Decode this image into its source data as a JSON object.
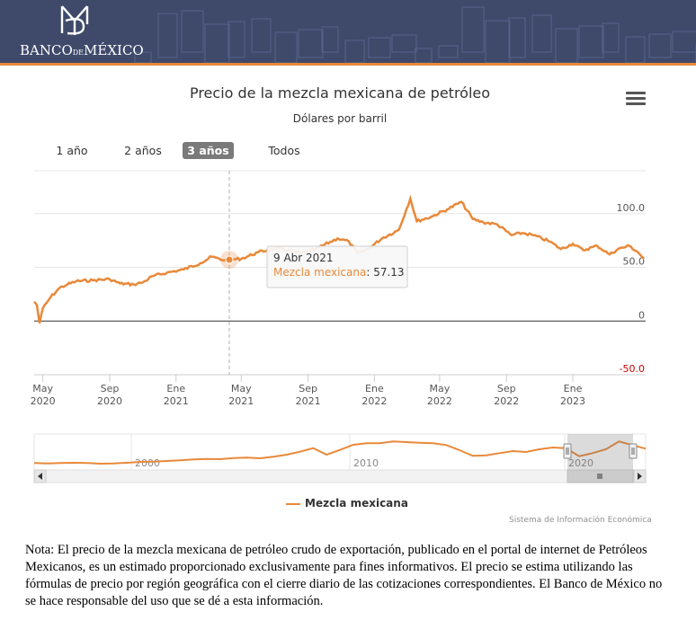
{
  "header": {
    "logo_main": "BANCO",
    "logo_small": "DE",
    "logo_end": "MÉXICO",
    "accent": "#e8893a",
    "background": "#3f4a6b"
  },
  "toolbar": {
    "menu_icon": "hamburger-menu-icon"
  },
  "range_selector": {
    "buttons": [
      {
        "label": "1 año",
        "active": false
      },
      {
        "label": "2 años",
        "active": false
      },
      {
        "label": "3 años",
        "active": true
      },
      {
        "label": "Todos",
        "active": false
      }
    ]
  },
  "tooltip": {
    "date": "9 Abr 2021",
    "series": "Mezcla mexicana",
    "value": "57.13"
  },
  "legend": {
    "label": "Mezcla mexicana"
  },
  "credits": "Sistema de Información Económica",
  "note": "Nota: El precio de la mezcla mexicana de petróleo crudo de exportación, publicado en el portal de internet de Petróleos Mexicanos, es un estimado proporcionado exclusivamente para fines informativos. El precio se estima utilizando las fórmulas de precio por región geográfica con el cierre diario de las cotizaciones correspondientes. El Banco de México no se hace responsable del uso que se dé a esta información.",
  "chart_data": {
    "type": "line",
    "title": "Precio de la mezcla mexicana de petróleo",
    "subtitle": "Dólares por barril",
    "color": "#e8893a",
    "y_ticks": [
      "100.0",
      "50.0",
      "0",
      "-50.0"
    ],
    "y_tick_values": [
      100,
      50,
      0,
      -50
    ],
    "negative_tick_color": "#cc0000",
    "ylim": [
      -50,
      140
    ],
    "x_range": [
      "2020-04-15",
      "2023-05-15"
    ],
    "x_ticks": [
      {
        "date": "2020-05-01",
        "month": "May",
        "year": "2020"
      },
      {
        "date": "2020-09-01",
        "month": "Sep",
        "year": "2020"
      },
      {
        "date": "2021-01-01",
        "month": "Ene",
        "year": "2021"
      },
      {
        "date": "2021-05-01",
        "month": "May",
        "year": "2021"
      },
      {
        "date": "2021-09-01",
        "month": "Sep",
        "year": "2021"
      },
      {
        "date": "2022-01-01",
        "month": "Ene",
        "year": "2022"
      },
      {
        "date": "2022-05-01",
        "month": "May",
        "year": "2022"
      },
      {
        "date": "2022-09-01",
        "month": "Sep",
        "year": "2022"
      },
      {
        "date": "2023-01-01",
        "month": "Ene",
        "year": "2023"
      }
    ],
    "series": [
      {
        "name": "Mezcla mexicana",
        "x": [
          "2020-04-15",
          "2020-04-20",
          "2020-04-25",
          "2020-05-01",
          "2020-05-15",
          "2020-06-01",
          "2020-06-15",
          "2020-07-01",
          "2020-08-01",
          "2020-09-01",
          "2020-09-20",
          "2020-10-15",
          "2020-11-01",
          "2020-11-20",
          "2020-12-15",
          "2021-01-15",
          "2021-02-15",
          "2021-03-08",
          "2021-03-25",
          "2021-04-09",
          "2021-05-01",
          "2021-06-01",
          "2021-07-05",
          "2021-08-20",
          "2021-09-15",
          "2021-10-25",
          "2021-11-15",
          "2021-12-01",
          "2021-12-20",
          "2022-01-15",
          "2022-02-15",
          "2022-03-08",
          "2022-03-20",
          "2022-04-15",
          "2022-05-15",
          "2022-06-10",
          "2022-07-01",
          "2022-07-20",
          "2022-08-15",
          "2022-09-10",
          "2022-09-30",
          "2022-10-20",
          "2022-11-20",
          "2022-12-10",
          "2023-01-01",
          "2023-01-20",
          "2023-02-15",
          "2023-03-10",
          "2023-03-25",
          "2023-04-15",
          "2023-05-01",
          "2023-05-12"
        ],
        "values": [
          18,
          15,
          -2,
          12,
          22,
          31,
          34,
          37,
          38,
          39,
          35,
          34,
          36,
          42,
          45,
          48,
          54,
          60,
          57,
          57.13,
          58,
          64,
          68,
          63,
          67,
          77,
          74,
          63,
          67,
          77,
          85,
          114,
          93,
          97,
          104,
          111,
          95,
          92,
          90,
          80,
          82,
          80,
          74,
          67,
          72,
          66,
          70,
          62,
          67,
          70,
          64,
          58
        ]
      }
    ],
    "navigator": {
      "x_labels": [
        "2000",
        "2010",
        "2020"
      ],
      "series_values": [
        12,
        11,
        12,
        13,
        12,
        10,
        11,
        13,
        16,
        17,
        19,
        21,
        24,
        26,
        25,
        29,
        30,
        28,
        33,
        40,
        50,
        62,
        40,
        56,
        73,
        78,
        78,
        84,
        82,
        80,
        78,
        72,
        55,
        36,
        38,
        45,
        52,
        49,
        58,
        64,
        62,
        35,
        45,
        58,
        84,
        72,
        60
      ]
    }
  }
}
